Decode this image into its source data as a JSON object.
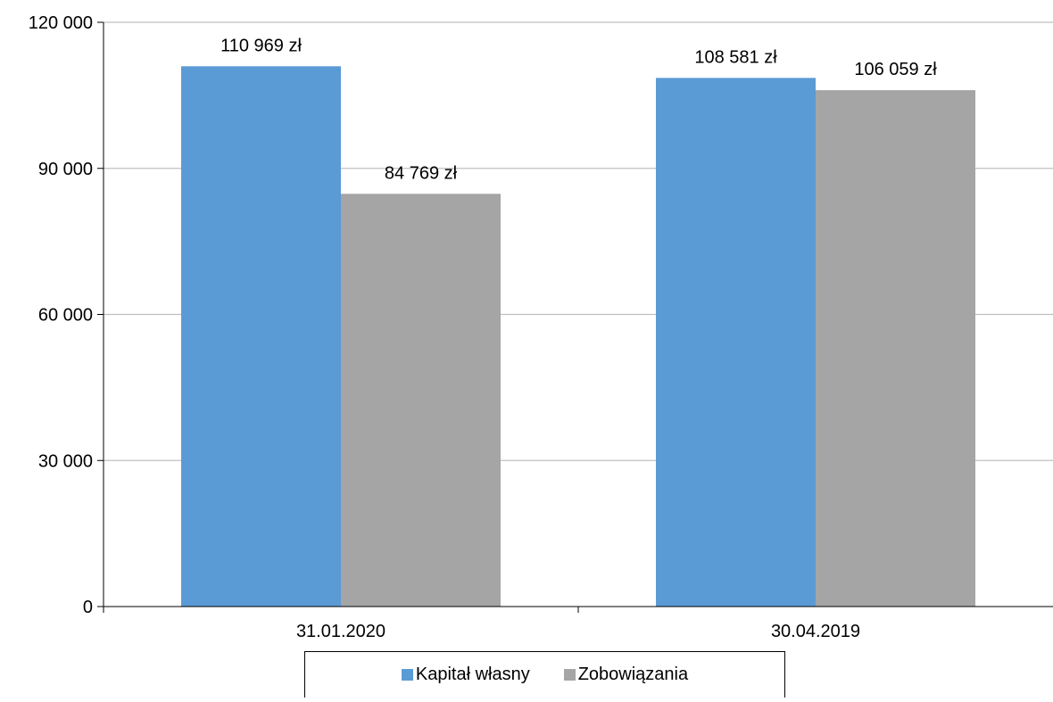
{
  "chart_data": {
    "type": "bar",
    "categories": [
      "31.01.2020",
      "30.04.2019"
    ],
    "series": [
      {
        "name": "Kapitał własny",
        "color": "#5b9bd5",
        "values": [
          110969,
          108581
        ],
        "labels": [
          "110 969 zł",
          "108 581 zł"
        ]
      },
      {
        "name": "Zobowiązania",
        "color": "#a5a5a5",
        "values": [
          84769,
          106059
        ],
        "labels": [
          "84 769 zł",
          "106 059 zł"
        ]
      }
    ],
    "yticks": [
      {
        "value": 0,
        "label": "0"
      },
      {
        "value": 30000,
        "label": "30 000"
      },
      {
        "value": 60000,
        "label": "60 000"
      },
      {
        "value": 90000,
        "label": "90 000"
      },
      {
        "value": 120000,
        "label": "120 000"
      }
    ],
    "ylim": [
      0,
      120000
    ],
    "grid": true,
    "legend_position": "bottom",
    "title": "",
    "xlabel": "",
    "ylabel": ""
  }
}
